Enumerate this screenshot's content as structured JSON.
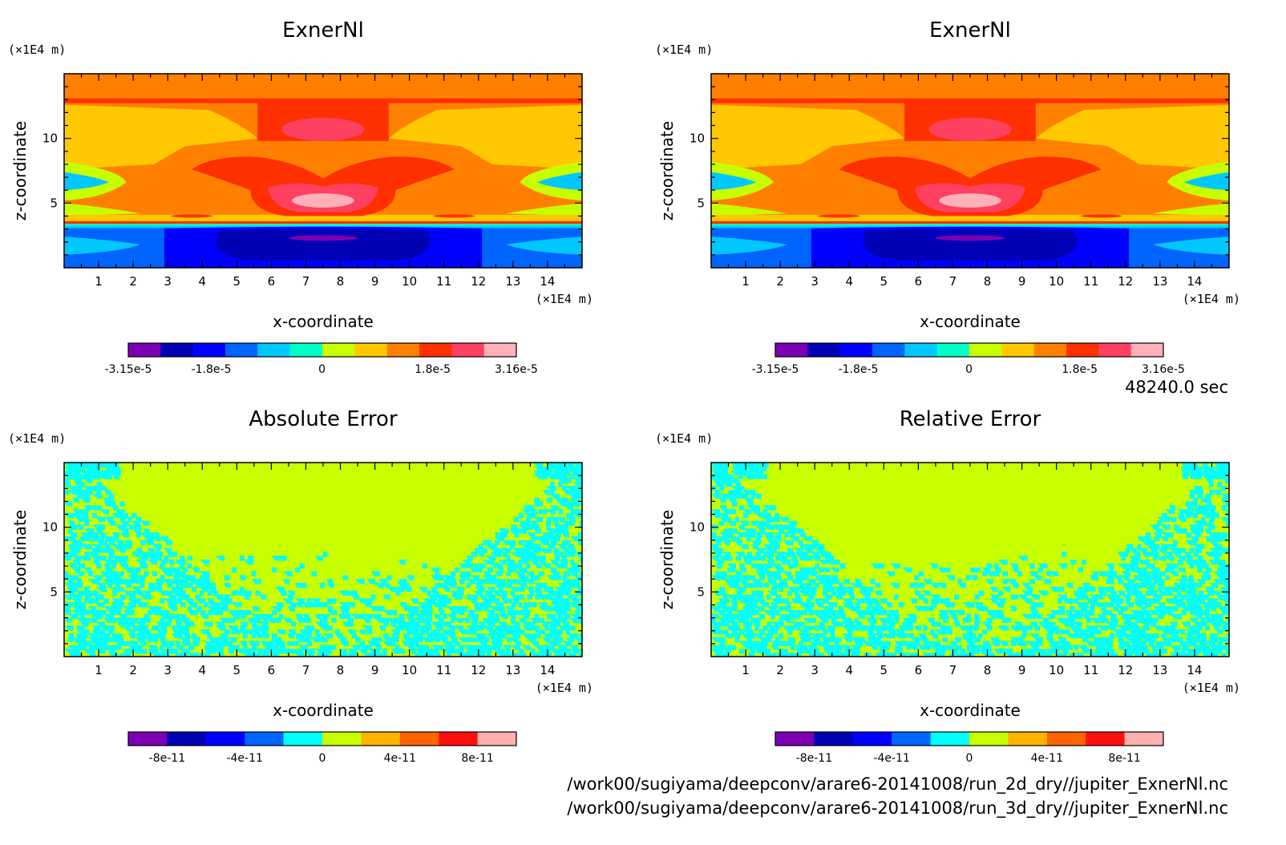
{
  "time_label": "48240.0 sec",
  "footer_paths": [
    "/work00/sugiyama/deepconv/arare6-20141008/run_2d_dry//jupiter_ExnerNl.nc",
    "/work00/sugiyama/deepconv/arare6-20141008/run_3d_dry//jupiter_ExnerNl.nc"
  ],
  "field_colors": [
    "#7b00b4",
    "#0000b4",
    "#0000ff",
    "#0064ff",
    "#00c8ff",
    "#00ffc8",
    "#c8ff00",
    "#ffc800",
    "#ff8000",
    "#ff3000",
    "#ff4060",
    "#ffb0b8"
  ],
  "error_colors": [
    "#7b00b4",
    "#0000b4",
    "#0000ff",
    "#0064ff",
    "#00ffff",
    "#c8ff00",
    "#ffb400",
    "#ff6400",
    "#ff1010",
    "#ffb0b0"
  ],
  "chart_data": [
    {
      "type": "heatmap",
      "title": "ExnerNl",
      "xlabel": "x-coordinate",
      "ylabel": "z-coordinate",
      "x_unit": "(×1E4 m)",
      "y_unit": "(×1E4 m)",
      "xlim": [
        0,
        15
      ],
      "ylim": [
        0,
        15
      ],
      "x_ticks": [
        "1",
        "2",
        "3",
        "4",
        "5",
        "6",
        "7",
        "8",
        "9",
        "10",
        "11",
        "12",
        "13",
        "14"
      ],
      "y_ticks": [
        "5",
        "10"
      ],
      "colorbar": {
        "levels": [
          "-3.15e-5",
          "-1.8e-5",
          "0",
          "1.8e-5",
          "3.16e-5"
        ],
        "range": [
          -3.15e-05,
          3.16e-05
        ],
        "bins": 12
      }
    },
    {
      "type": "heatmap",
      "title": "ExnerNl",
      "xlabel": "x-coordinate",
      "ylabel": "z-coordinate",
      "x_unit": "(×1E4 m)",
      "y_unit": "(×1E4 m)",
      "xlim": [
        0,
        15
      ],
      "ylim": [
        0,
        15
      ],
      "x_ticks": [
        "1",
        "2",
        "3",
        "4",
        "5",
        "6",
        "7",
        "8",
        "9",
        "10",
        "11",
        "12",
        "13",
        "14"
      ],
      "y_ticks": [
        "5",
        "10"
      ],
      "colorbar": {
        "levels": [
          "-3.15e-5",
          "-1.8e-5",
          "0",
          "1.8e-5",
          "3.16e-5"
        ],
        "range": [
          -3.15e-05,
          3.16e-05
        ],
        "bins": 12
      }
    },
    {
      "type": "heatmap",
      "title": "Absolute Error",
      "xlabel": "x-coordinate",
      "ylabel": "z-coordinate",
      "x_unit": "(×1E4 m)",
      "y_unit": "(×1E4 m)",
      "xlim": [
        0,
        15
      ],
      "ylim": [
        0,
        15
      ],
      "x_ticks": [
        "1",
        "2",
        "3",
        "4",
        "5",
        "6",
        "7",
        "8",
        "9",
        "10",
        "11",
        "12",
        "13",
        "14"
      ],
      "y_ticks": [
        "5",
        "10"
      ],
      "colorbar": {
        "levels": [
          "-8e-11",
          "-4e-11",
          "0",
          "4e-11",
          "8e-11"
        ],
        "range": [
          -1e-10,
          1e-10
        ],
        "bins": 10
      }
    },
    {
      "type": "heatmap",
      "title": "Relative Error",
      "xlabel": "x-coordinate",
      "ylabel": "z-coordinate",
      "x_unit": "(×1E4 m)",
      "y_unit": "(×1E4 m)",
      "xlim": [
        0,
        15
      ],
      "ylim": [
        0,
        15
      ],
      "x_ticks": [
        "1",
        "2",
        "3",
        "4",
        "5",
        "6",
        "7",
        "8",
        "9",
        "10",
        "11",
        "12",
        "13",
        "14"
      ],
      "y_ticks": [
        "5",
        "10"
      ],
      "colorbar": {
        "levels": [
          "-8e-11",
          "-4e-11",
          "0",
          "4e-11",
          "8e-11"
        ],
        "range": [
          -1e-10,
          1e-10
        ],
        "bins": 10
      }
    }
  ]
}
